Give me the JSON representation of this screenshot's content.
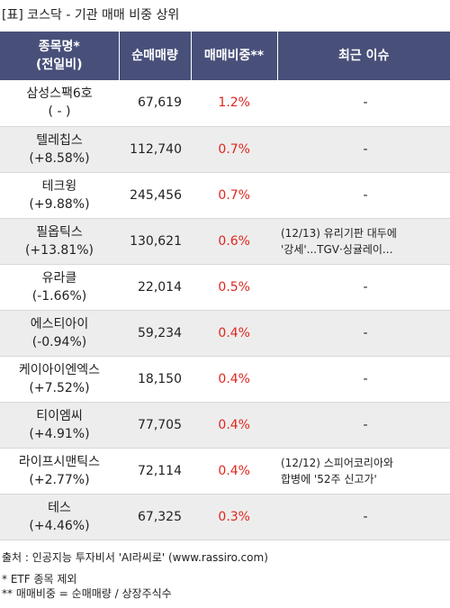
{
  "title": "[표] 코스닥 - 기관 매매 비중 상위",
  "table": {
    "headers": [
      {
        "line1": "종목명*",
        "line2": "(전일비)"
      },
      {
        "line1": "순매매량",
        "line2": ""
      },
      {
        "line1": "매매비중**",
        "line2": ""
      },
      {
        "line1": "최근 이슈",
        "line2": ""
      }
    ],
    "rows": [
      {
        "name": "삼성스팩6호",
        "change": "( - )",
        "volume": "67,619",
        "ratio": "1.2%",
        "issue_line1": "-",
        "issue_line2": ""
      },
      {
        "name": "텔레칩스",
        "change": "(+8.58%)",
        "volume": "112,740",
        "ratio": "0.7%",
        "issue_line1": "-",
        "issue_line2": ""
      },
      {
        "name": "테크윙",
        "change": "(+9.88%)",
        "volume": "245,456",
        "ratio": "0.7%",
        "issue_line1": "-",
        "issue_line2": ""
      },
      {
        "name": "필옵틱스",
        "change": "(+13.81%)",
        "volume": "130,621",
        "ratio": "0.6%",
        "issue_line1": "(12/13) 유리기판 대두에",
        "issue_line2": "'강세'...TGV·싱귤레이..."
      },
      {
        "name": "유라클",
        "change": "(-1.66%)",
        "volume": "22,014",
        "ratio": "0.5%",
        "issue_line1": "-",
        "issue_line2": ""
      },
      {
        "name": "에스티아이",
        "change": "(-0.94%)",
        "volume": "59,234",
        "ratio": "0.4%",
        "issue_line1": "-",
        "issue_line2": ""
      },
      {
        "name": "케이아이엔엑스",
        "change": "(+7.52%)",
        "volume": "18,150",
        "ratio": "0.4%",
        "issue_line1": "-",
        "issue_line2": ""
      },
      {
        "name": "티이엠씨",
        "change": "(+4.91%)",
        "volume": "77,705",
        "ratio": "0.4%",
        "issue_line1": "-",
        "issue_line2": ""
      },
      {
        "name": "라이프시맨틱스",
        "change": "(+2.77%)",
        "volume": "72,114",
        "ratio": "0.4%",
        "issue_line1": "(12/12) 스피어코리아와",
        "issue_line2": "합병에 '52주 신고가'"
      },
      {
        "name": "테스",
        "change": "(+4.46%)",
        "volume": "67,325",
        "ratio": "0.3%",
        "issue_line1": "-",
        "issue_line2": ""
      }
    ]
  },
  "footer": {
    "source": "출처 : 인공지능 투자비서 'AI라씨로' (www.rassiro.com)",
    "note1": "* ETF 종목 제외",
    "note2": "** 매매비중 = 순매매량 / 상장주식수"
  }
}
